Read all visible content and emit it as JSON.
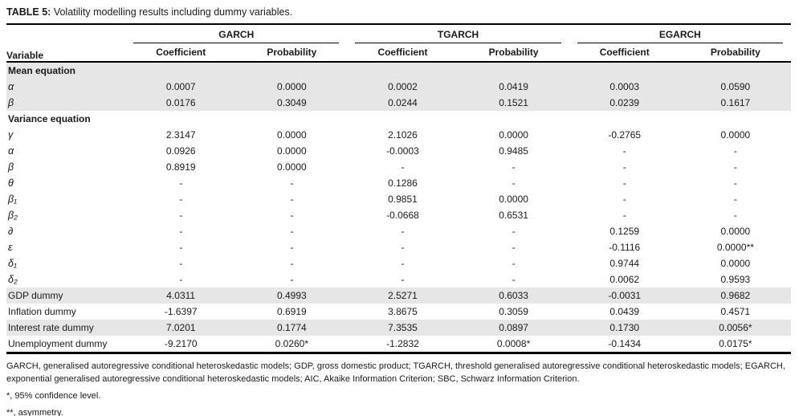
{
  "title": {
    "label": "TABLE 5:",
    "text": "Volatility modelling results including dummy variables."
  },
  "colors": {
    "row_shade": "#e6e6e6",
    "rule_color": "#000000",
    "text_color": "#1a1a1a"
  },
  "table": {
    "variable_header": "Variable",
    "groups": [
      {
        "name": "GARCH",
        "columns": [
          "Coefficient",
          "Probability"
        ]
      },
      {
        "name": "TGARCH",
        "columns": [
          "Coefficient",
          "Probability"
        ]
      },
      {
        "name": "EGARCH",
        "columns": [
          "Coefficient",
          "Probability"
        ]
      }
    ],
    "rows": [
      {
        "type": "section",
        "label": "Mean equation",
        "shaded": true
      },
      {
        "type": "data",
        "label": "α",
        "italic": true,
        "shaded": true,
        "values": [
          "0.0007",
          "0.0000",
          "0.0002",
          "0.0419",
          "0.0003",
          "0.0590"
        ]
      },
      {
        "type": "data",
        "label": "β",
        "italic": true,
        "shaded": true,
        "values": [
          "0.0176",
          "0.3049",
          "0.0244",
          "0.1521",
          "0.0239",
          "0.1617"
        ]
      },
      {
        "type": "section",
        "label": "Variance equation",
        "shaded": false
      },
      {
        "type": "data",
        "label": "γ",
        "italic": true,
        "shaded": false,
        "values": [
          "2.3147",
          "0.0000",
          "2.1026",
          "0.0000",
          "-0.2765",
          "0.0000"
        ]
      },
      {
        "type": "data",
        "label": "α",
        "italic": true,
        "shaded": false,
        "values": [
          "0.0926",
          "0.0000",
          "-0.0003",
          "0.9485",
          "-",
          "-"
        ]
      },
      {
        "type": "data",
        "label": "β",
        "italic": true,
        "shaded": false,
        "values": [
          "0.8919",
          "0.0000",
          "-",
          "-",
          "-",
          "-"
        ]
      },
      {
        "type": "data",
        "label": "θ",
        "italic": true,
        "shaded": false,
        "values": [
          "-",
          "-",
          "0.1286",
          "-",
          "-",
          "-"
        ]
      },
      {
        "type": "data",
        "label": "β₁",
        "italic": true,
        "shaded": false,
        "values": [
          "-",
          "-",
          "0.9851",
          "0.0000",
          "-",
          "-"
        ]
      },
      {
        "type": "data",
        "label": "β₂",
        "italic": true,
        "shaded": false,
        "values": [
          "-",
          "-",
          "-0.0668",
          "0.6531",
          "-",
          "-"
        ]
      },
      {
        "type": "data",
        "label": "∂",
        "italic": true,
        "shaded": false,
        "values": [
          "-",
          "-",
          "-",
          "-",
          "0.1259",
          "0.0000"
        ]
      },
      {
        "type": "data",
        "label": "ε",
        "italic": true,
        "shaded": false,
        "values": [
          "-",
          "-",
          "-",
          "-",
          "-0.1116",
          "0.0000**"
        ]
      },
      {
        "type": "data",
        "label": "δ₁",
        "italic": true,
        "shaded": false,
        "values": [
          "-",
          "-",
          "-",
          "-",
          "0.9744",
          "0.0000"
        ]
      },
      {
        "type": "data",
        "label": "δ₂",
        "italic": true,
        "shaded": false,
        "values": [
          "-",
          "-",
          "-",
          "-",
          "0.0062",
          "0.9593"
        ]
      },
      {
        "type": "data",
        "label": "GDP dummy",
        "italic": false,
        "shaded": true,
        "values": [
          "4.0311",
          "0.4993",
          "2.5271",
          "0.6033",
          "-0.0031",
          "0.9682"
        ]
      },
      {
        "type": "data",
        "label": "Inflation dummy",
        "italic": false,
        "shaded": false,
        "values": [
          "-1.6397",
          "0.6919",
          "3.8675",
          "0.3059",
          "0.0439",
          "0.4571"
        ]
      },
      {
        "type": "data",
        "label": "Interest rate dummy",
        "italic": false,
        "shaded": true,
        "values": [
          "7.0201",
          "0.1774",
          "7.3535",
          "0.0897",
          "0.1730",
          "0.0056*"
        ]
      },
      {
        "type": "data",
        "label": "Unemployment dummy",
        "italic": false,
        "shaded": false,
        "values": [
          "-9.2170",
          "0.0260*",
          "-1.2832",
          "0.0008*",
          "-0.1434",
          "0.0175*"
        ]
      }
    ]
  },
  "footnotes": [
    "GARCH, generalised autoregressive conditional heteroskedastic models; GDP, gross domestic product; TGARCH, threshold generalised autoregressive conditional heteroskedastic models; EGARCH, exponential generalised autoregressive conditional heteroskedastic models; AIC, Akaike Information Criterion; SBC, Schwarz Information Criterion.",
    "*, 95% confidence level.",
    "**, asymmetry."
  ]
}
